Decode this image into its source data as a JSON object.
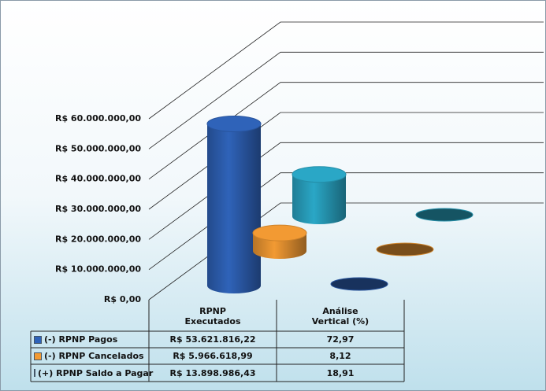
{
  "chart_data": {
    "type": "bar",
    "categories": [
      "RPNP Executados",
      "Análise Vertical (%)"
    ],
    "series": [
      {
        "name": "(-) RPNP Pagos",
        "color": "#2f63b9",
        "values": [
          53621816.22,
          72.97
        ],
        "value_labels": [
          "R$ 53.621.816,22",
          "72,97"
        ]
      },
      {
        "name": "(-) RPNP Cancelados",
        "color": "#f29a33",
        "values": [
          5966618.99,
          8.12
        ],
        "value_labels": [
          "R$ 5.966.618,99",
          "8,12"
        ]
      },
      {
        "name": "(+) RPNP Saldo a Pagar",
        "color": "#2aa7c6",
        "values": [
          13898986.43,
          18.91
        ],
        "value_labels": [
          "R$ 13.898.986,43",
          "18,91"
        ]
      }
    ],
    "ylim": [
      0,
      60000000
    ],
    "yticks": [
      {
        "value": 0,
        "label": "R$ 0,00"
      },
      {
        "value": 10000000,
        "label": "R$ 10.000.000,00"
      },
      {
        "value": 20000000,
        "label": "R$ 20.000.000,00"
      },
      {
        "value": 30000000,
        "label": "R$ 30.000.000,00"
      },
      {
        "value": 40000000,
        "label": "R$ 40.000.000,00"
      },
      {
        "value": 50000000,
        "label": "R$ 50.000.000,00"
      },
      {
        "value": 60000000,
        "label": "R$ 60.000.000,00"
      }
    ],
    "grid": true
  }
}
